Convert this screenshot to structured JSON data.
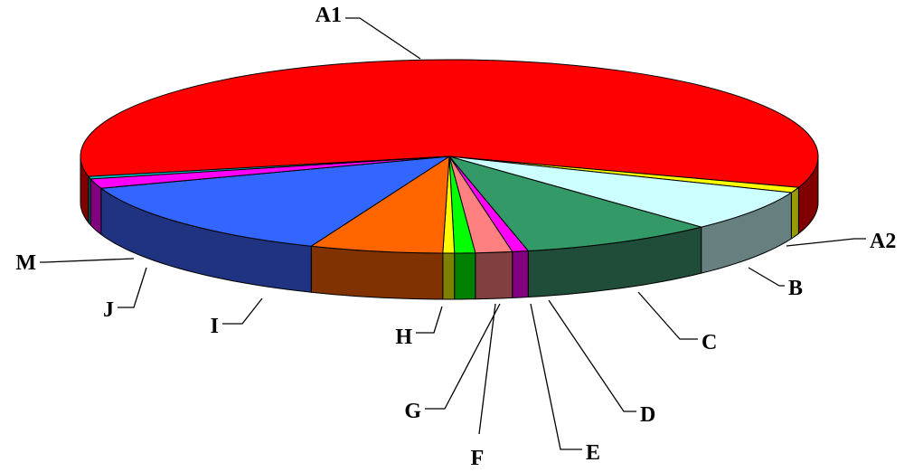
{
  "chart_data": {
    "type": "pie",
    "style": "3d-exploded-none",
    "slices": [
      {
        "label": "A1",
        "value": 58.3,
        "color": "#ff0000",
        "side_color": "#800000"
      },
      {
        "label": "A2",
        "value": 0.9,
        "color": "#ffff00",
        "side_color": "#999900"
      },
      {
        "label": "B",
        "value": 6.9,
        "color": "#ccffff",
        "side_color": "#668080"
      },
      {
        "label": "C",
        "value": 8.5,
        "color": "#339966",
        "side_color": "#1f4d3a"
      },
      {
        "label": "D",
        "value": 0.7,
        "color": "#ff00ff",
        "side_color": "#800080"
      },
      {
        "label": "E",
        "value": 1.6,
        "color": "#ff8080",
        "side_color": "#804040"
      },
      {
        "label": "F",
        "value": 0.9,
        "color": "#00ff00",
        "side_color": "#008000"
      },
      {
        "label": "G",
        "value": 0.5,
        "color": "#ffff00",
        "side_color": "#808000"
      },
      {
        "label": "H",
        "value": 5.8,
        "color": "#ff6600",
        "side_color": "#803300"
      },
      {
        "label": "I",
        "value": 13.5,
        "color": "#3366ff",
        "side_color": "#1f3380"
      },
      {
        "label": "J",
        "value": 1.6,
        "color": "#ff00ff",
        "side_color": "#800080"
      },
      {
        "label": "M",
        "value": 0.4,
        "color": "#00cccc",
        "side_color": "#006666"
      }
    ]
  }
}
